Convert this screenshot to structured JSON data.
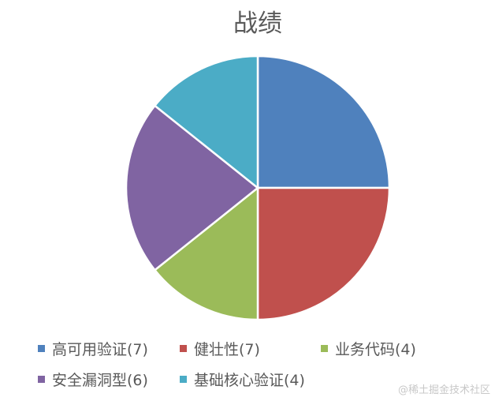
{
  "chart_data": {
    "type": "pie",
    "title": "战绩",
    "categories": [
      "高可用验证",
      "健壮性",
      "业务代码",
      "安全漏洞型",
      "基础核心验证"
    ],
    "values": [
      7,
      7,
      4,
      6,
      4
    ],
    "colors": [
      "#4f81bd",
      "#c0504d",
      "#9bbb59",
      "#8064a2",
      "#4bacc6"
    ],
    "start_angle": "top",
    "direction": "clockwise",
    "legend": "bottom",
    "legend_labels": [
      "高可用验证(7)",
      "健壮性(7)",
      "业务代码(4)",
      "安全漏洞型(6)",
      "基础核心验证(4)"
    ]
  },
  "watermark": "@稀土掘金技术社区"
}
